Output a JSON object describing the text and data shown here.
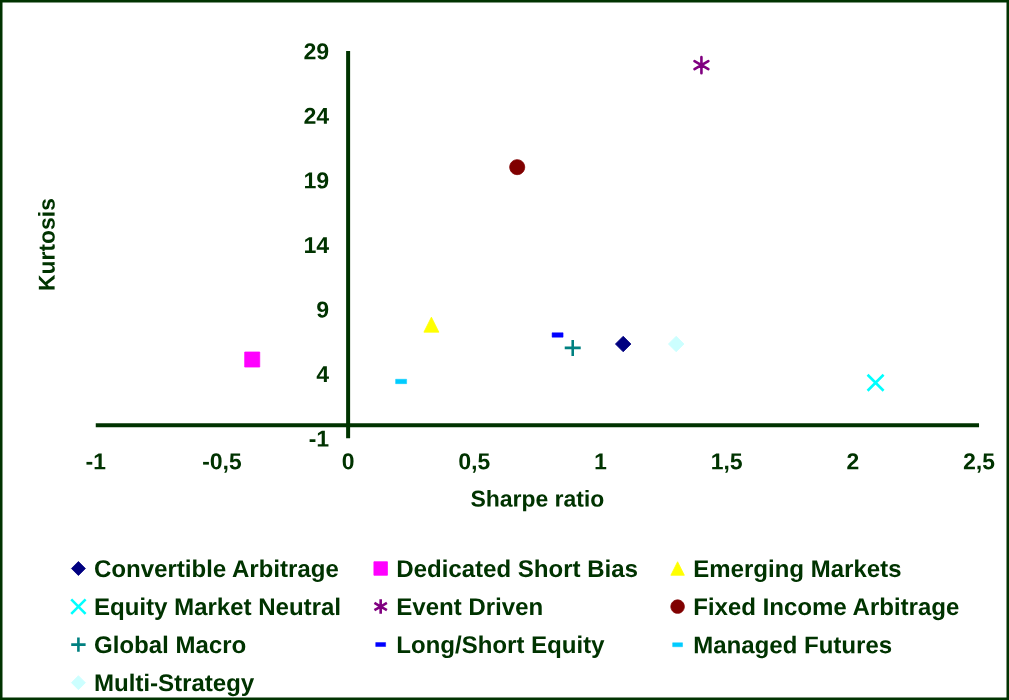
{
  "chart_data": {
    "type": "scatter",
    "xlabel": "Sharpe ratio",
    "ylabel": "Kurtosis",
    "xlim": [
      -1,
      2.5
    ],
    "ylim": [
      -1,
      29
    ],
    "xticks": [
      -1,
      {
        "value": -0.5,
        "label": "-0,5"
      },
      0,
      {
        "value": 0.5,
        "label": "0,5"
      },
      1,
      {
        "value": 1.5,
        "label": "1,5"
      },
      2,
      {
        "value": 2.5,
        "label": "2,5"
      }
    ],
    "yticks": [
      -1,
      4,
      9,
      14,
      19,
      24,
      29
    ],
    "legend": "bottom",
    "series": [
      {
        "name": "Convertible Arbitrage",
        "color": "#000080",
        "marker": "diamond",
        "x": [
          1.09
        ],
        "values": [
          6.3
        ]
      },
      {
        "name": "Dedicated Short Bias",
        "color": "#ff00ff",
        "marker": "square",
        "x": [
          -0.38
        ],
        "values": [
          5.1
        ]
      },
      {
        "name": "Emerging Markets",
        "color": "#ffff00",
        "marker": "triangle",
        "x": [
          0.33
        ],
        "values": [
          7.8
        ]
      },
      {
        "name": "Equity Market Neutral",
        "color": "#00ffff",
        "marker": "x",
        "x": [
          2.09
        ],
        "values": [
          3.3
        ]
      },
      {
        "name": "Event Driven",
        "color": "#800080",
        "marker": "cross",
        "x": [
          1.4
        ],
        "values": [
          27.9
        ]
      },
      {
        "name": "Fixed Income Arbitrage",
        "color": "#800000",
        "marker": "circle",
        "x": [
          0.67
        ],
        "values": [
          20.0
        ]
      },
      {
        "name": "Global Macro",
        "color": "#008080",
        "marker": "plus",
        "x": [
          0.89
        ],
        "values": [
          6.0
        ]
      },
      {
        "name": "Long/Short Equity",
        "color": "#0000ff",
        "x": [
          0.83
        ],
        "values": [
          7.0
        ]
      },
      {
        "name": "Managed Futures",
        "color": "#00ccff",
        "x": [
          0.21
        ],
        "values": [
          3.4
        ]
      },
      {
        "name": "Multi-Strategy",
        "color": "#ccffff",
        "marker": "diamond",
        "x": [
          1.3
        ],
        "values": [
          6.3
        ]
      }
    ]
  }
}
